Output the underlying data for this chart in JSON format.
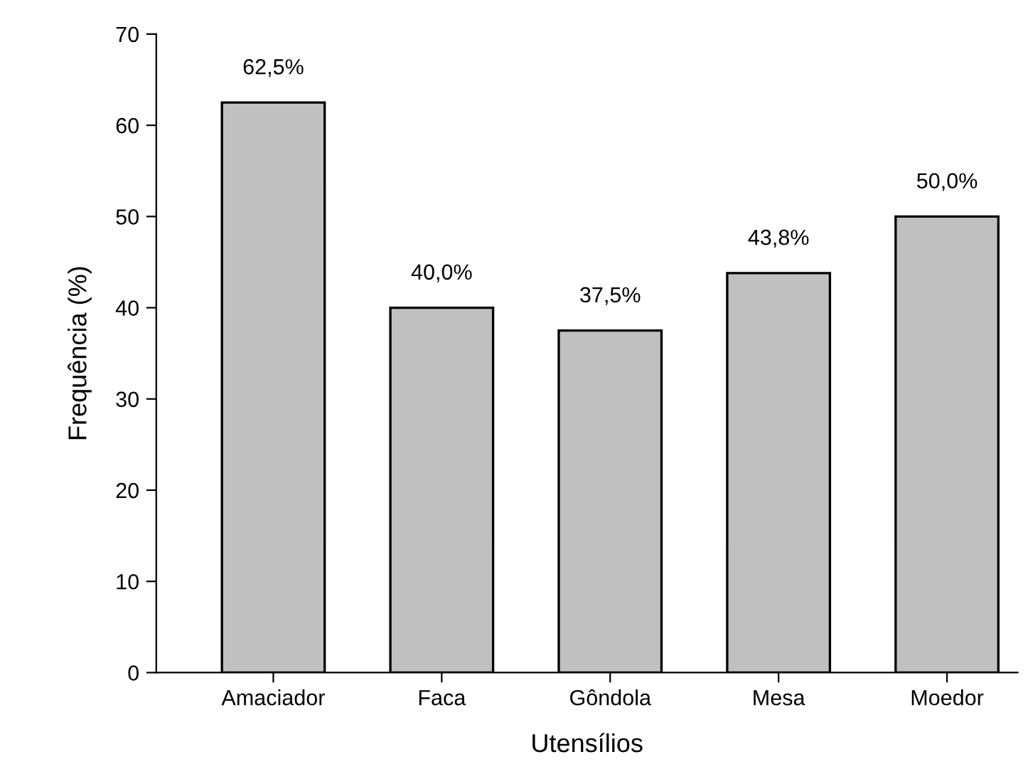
{
  "chart_data": {
    "type": "bar",
    "xlabel": "Utensílios",
    "ylabel": "Frequência (%)",
    "categories": [
      "Amaciador",
      "Faca",
      "Gôndola",
      "Mesa",
      "Moedor"
    ],
    "values": [
      62.5,
      40.0,
      37.5,
      43.8,
      50.0
    ],
    "value_labels": [
      "62,5%",
      "40,0%",
      "37,5%",
      "43,8%",
      "50,0%"
    ],
    "color": "#c0c0c0",
    "ylim": [
      0,
      70
    ],
    "yticks": [
      0,
      10,
      20,
      30,
      40,
      50,
      60,
      70
    ],
    "grid": false,
    "legend": false
  }
}
